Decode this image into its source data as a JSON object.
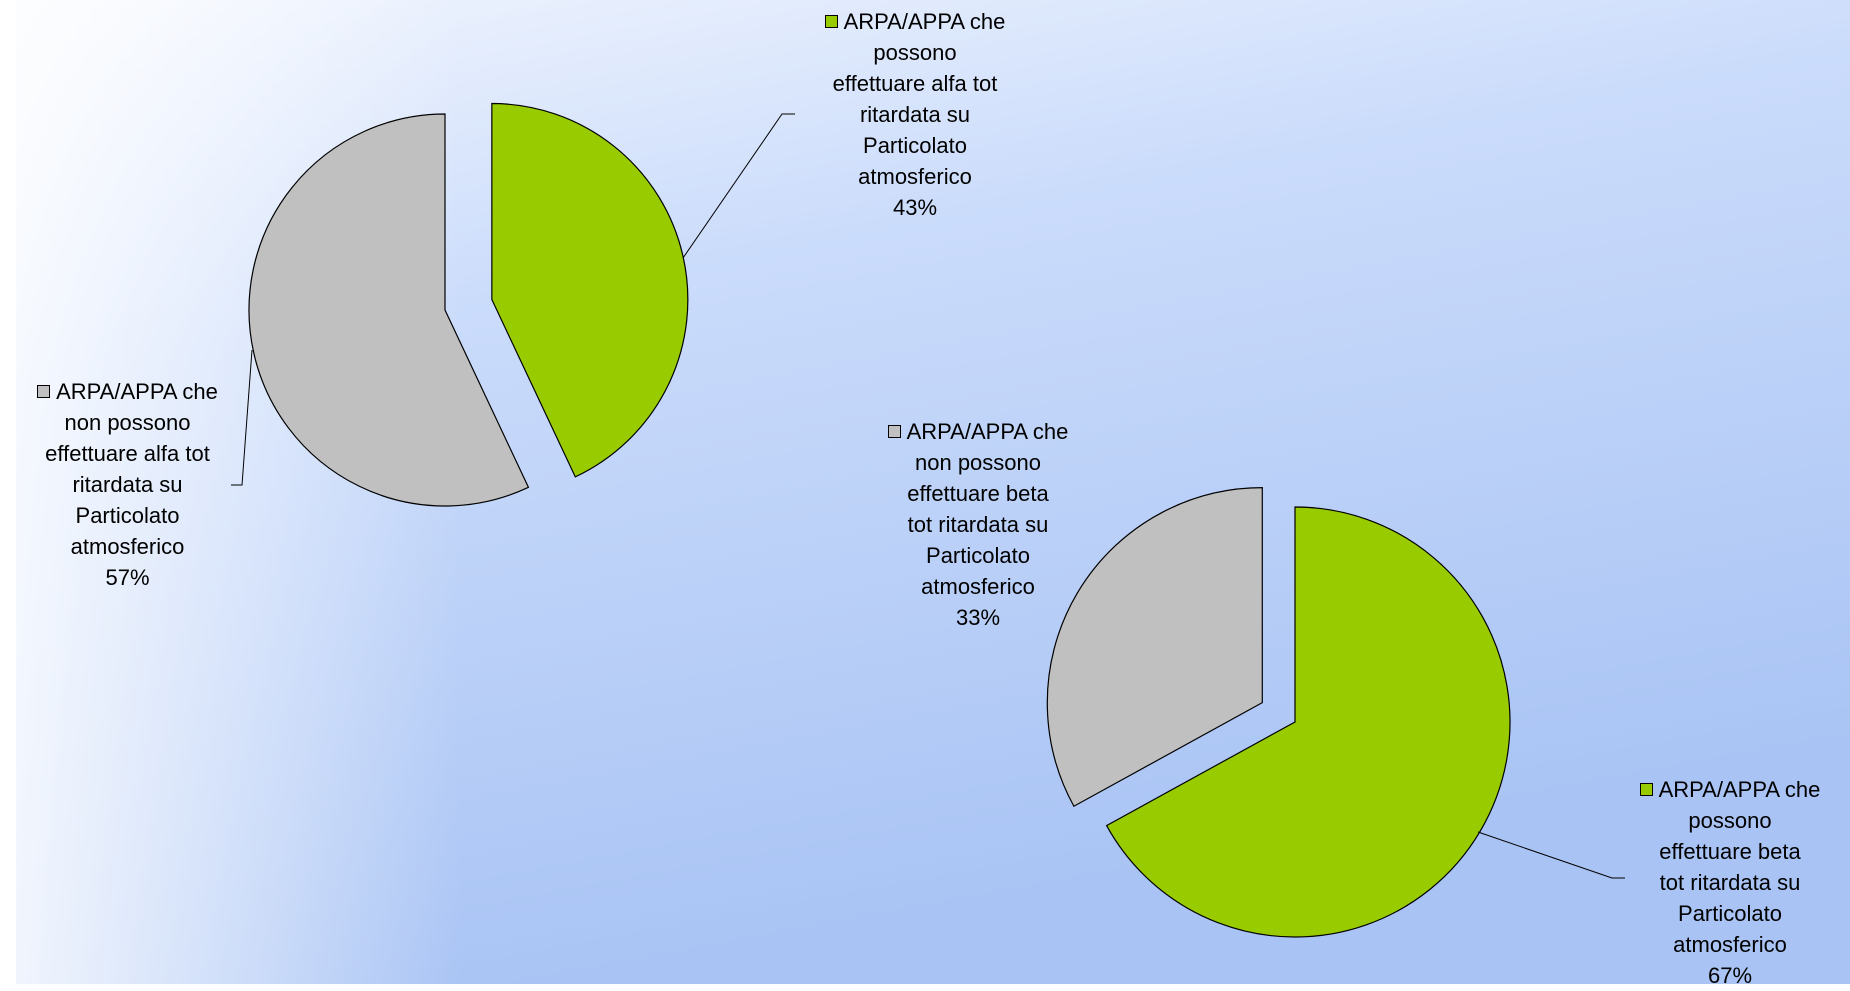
{
  "colors": {
    "green": "#99cc00",
    "gray": "#c0c0c0",
    "outline": "#000000",
    "background_top": "#eef3fd",
    "background_bottom": "#a9c4f3"
  },
  "chart_data": [
    {
      "type": "pie",
      "slices": [
        {
          "label_lines": [
            "ARPA/APPA che",
            "possono",
            "effettuare alfa tot",
            "ritardata su",
            "Particolato",
            "atmosferico"
          ],
          "percent_label": "43%",
          "value": 43,
          "color": "#99cc00",
          "exploded": true
        },
        {
          "label_lines": [
            "ARPA/APPA che",
            "non possono",
            "effettuare alfa tot",
            "ritardata su",
            "Particolato",
            "atmosferico"
          ],
          "percent_label": "57%",
          "value": 57,
          "color": "#c0c0c0",
          "exploded": false
        }
      ]
    },
    {
      "type": "pie",
      "slices": [
        {
          "label_lines": [
            "ARPA/APPA che",
            "possono",
            "effettuare beta",
            "tot ritardata su",
            "Particolato",
            "atmosferico"
          ],
          "percent_label": "67%",
          "value": 67,
          "color": "#99cc00",
          "exploded": false
        },
        {
          "label_lines": [
            "ARPA/APPA che",
            "non possono",
            "effettuare beta",
            "tot ritardata su",
            "Particolato",
            "atmosferico"
          ],
          "percent_label": "33%",
          "value": 33,
          "color": "#c0c0c0",
          "exploded": true
        }
      ]
    }
  ]
}
